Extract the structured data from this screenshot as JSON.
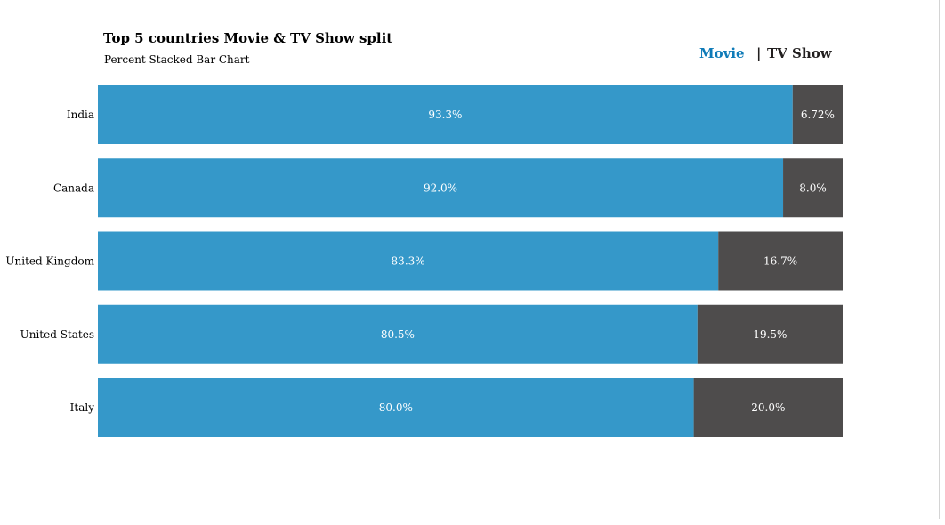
{
  "chart_data": {
    "type": "bar",
    "orientation": "horizontal",
    "stacked": "percent",
    "title": "Top 5 countries Movie & TV Show split",
    "subtitle": "Percent Stacked Bar Chart",
    "categories": [
      "India",
      "Canada",
      "United Kingdom",
      "United States",
      "Italy"
    ],
    "series": [
      {
        "name": "Movie",
        "values": [
          93.3,
          92.0,
          83.3,
          80.5,
          80.0
        ],
        "labels": [
          "93.3%",
          "92.0%",
          "83.3%",
          "80.5%",
          "80.0%"
        ]
      },
      {
        "name": "TV Show",
        "values": [
          6.72,
          8.0,
          16.7,
          19.5,
          20.0
        ],
        "labels": [
          "6.72%",
          "8.0%",
          "16.7%",
          "19.5%",
          "20.0%"
        ]
      }
    ],
    "legend": {
      "position": "top-right",
      "separator": "|"
    },
    "colors": {
      "Movie": "#3598c9",
      "TV Show": "#4e4c4c",
      "legend_movie_text": "#0f7bb8",
      "legend_tv_text": "#221f1f"
    },
    "xlim": [
      0,
      100
    ],
    "grid": false
  }
}
